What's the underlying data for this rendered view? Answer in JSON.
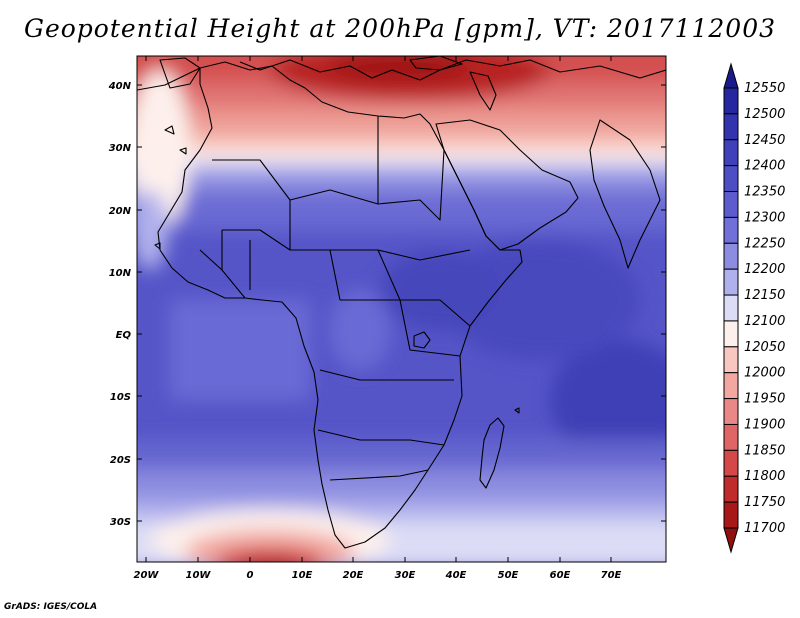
{
  "title": "Geopotential Height at 200hPa [gpm], VT: 2017112003",
  "footer": "GrADS: IGES/COLA",
  "map": {
    "lat_labels": [
      "40N",
      "30N",
      "20N",
      "10N",
      "EQ",
      "10S",
      "20S",
      "30S"
    ],
    "lon_labels": [
      "20W",
      "10W",
      "0",
      "10E",
      "20E",
      "30E",
      "40E",
      "50E",
      "60E",
      "70E"
    ]
  },
  "colorbar": {
    "levels": [
      "12550",
      "12500",
      "12450",
      "12400",
      "12350",
      "12300",
      "12250",
      "12200",
      "12150",
      "12100",
      "12050",
      "12000",
      "11950",
      "11900",
      "11850",
      "11800",
      "11750",
      "11700"
    ],
    "colors": [
      "#1a1a8c",
      "#2626a0",
      "#3333b0",
      "#4040bb",
      "#4d4dc4",
      "#5c5ccf",
      "#7070d8",
      "#8c8ce0",
      "#b0b0ec",
      "#dcdcf6",
      "#fdf0ec",
      "#f8c8c0",
      "#f2a8a0",
      "#ea8888",
      "#e06666",
      "#d44848",
      "#c02c2c",
      "#a81818",
      "#901010"
    ]
  }
}
